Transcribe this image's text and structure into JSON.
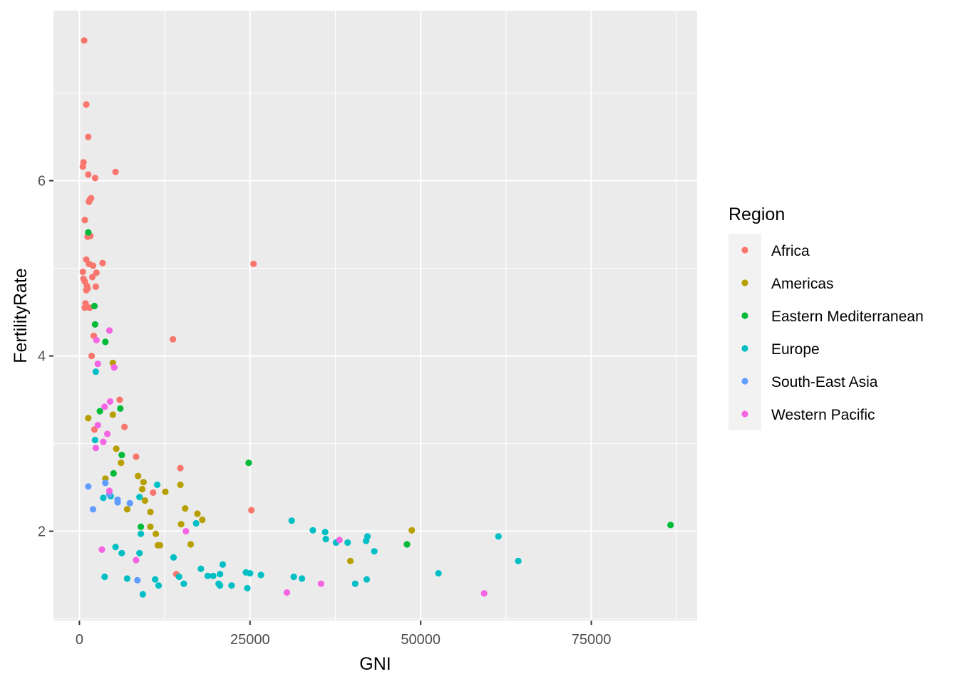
{
  "chart_data": {
    "type": "scatter",
    "xlabel": "GNI",
    "ylabel": "FertilityRate",
    "xlim": [
      -3800,
      90500
    ],
    "ylim": [
      0.98,
      7.94
    ],
    "x_ticks": [
      0,
      25000,
      50000,
      75000
    ],
    "x_tick_labels": [
      "0",
      "25000",
      "50000",
      "75000"
    ],
    "y_ticks": [
      2,
      4,
      6
    ],
    "y_tick_labels": [
      "2",
      "4",
      "6"
    ],
    "grid": true,
    "panel_background": "#ebebeb",
    "legend": {
      "title": "Region",
      "position": "right"
    },
    "series": [
      {
        "name": "Africa",
        "color": "#F8766D",
        "points": [
          [
            700,
            7.6
          ],
          [
            1000,
            6.87
          ],
          [
            1300,
            6.5
          ],
          [
            500,
            6.16
          ],
          [
            600,
            6.21
          ],
          [
            1300,
            6.07
          ],
          [
            2300,
            6.03
          ],
          [
            5300,
            6.1
          ],
          [
            1500,
            5.78
          ],
          [
            1700,
            5.8
          ],
          [
            1400,
            5.76
          ],
          [
            800,
            5.55
          ],
          [
            1200,
            5.36
          ],
          [
            1600,
            5.37
          ],
          [
            1000,
            5.1
          ],
          [
            1400,
            5.05
          ],
          [
            2000,
            5.03
          ],
          [
            3400,
            5.06
          ],
          [
            25500,
            5.05
          ],
          [
            500,
            4.96
          ],
          [
            2500,
            4.95
          ],
          [
            1900,
            4.9
          ],
          [
            600,
            4.88
          ],
          [
            800,
            4.85
          ],
          [
            1100,
            4.8
          ],
          [
            2400,
            4.79
          ],
          [
            1000,
            4.75
          ],
          [
            1200,
            4.77
          ],
          [
            900,
            4.6
          ],
          [
            800,
            4.55
          ],
          [
            1500,
            4.55
          ],
          [
            2100,
            4.23
          ],
          [
            13700,
            4.19
          ],
          [
            1800,
            4.0
          ],
          [
            5900,
            3.5
          ],
          [
            6600,
            3.19
          ],
          [
            2200,
            3.16
          ],
          [
            8300,
            2.85
          ],
          [
            14800,
            2.72
          ],
          [
            10800,
            2.44
          ],
          [
            25200,
            2.24
          ],
          [
            14200,
            1.51
          ]
        ]
      },
      {
        "name": "Americas",
        "color": "#B79F00",
        "points": [
          [
            4900,
            3.92
          ],
          [
            1300,
            3.29
          ],
          [
            4900,
            3.33
          ],
          [
            3800,
            2.6
          ],
          [
            5400,
            2.94
          ],
          [
            6100,
            2.78
          ],
          [
            8600,
            2.63
          ],
          [
            9400,
            2.56
          ],
          [
            9200,
            2.48
          ],
          [
            12600,
            2.45
          ],
          [
            14800,
            2.53
          ],
          [
            7000,
            2.25
          ],
          [
            10400,
            2.22
          ],
          [
            15500,
            2.26
          ],
          [
            17300,
            2.2
          ],
          [
            18000,
            2.13
          ],
          [
            9600,
            2.35
          ],
          [
            10400,
            2.05
          ],
          [
            14900,
            2.08
          ],
          [
            11200,
            1.97
          ],
          [
            11500,
            1.84
          ],
          [
            11800,
            1.84
          ],
          [
            16300,
            1.85
          ],
          [
            48700,
            2.01
          ],
          [
            39700,
            1.66
          ]
        ]
      },
      {
        "name": "Eastern Mediterranean",
        "color": "#00BA38",
        "points": [
          [
            1300,
            5.41
          ],
          [
            2200,
            4.57
          ],
          [
            2300,
            4.36
          ],
          [
            3800,
            4.16
          ],
          [
            3000,
            3.37
          ],
          [
            6000,
            3.4
          ],
          [
            6200,
            2.87
          ],
          [
            5000,
            2.66
          ],
          [
            24800,
            2.78
          ],
          [
            9000,
            2.05
          ],
          [
            86600,
            2.07
          ],
          [
            48000,
            1.85
          ]
        ]
      },
      {
        "name": "Europe",
        "color": "#00BFC4",
        "points": [
          [
            2400,
            3.82
          ],
          [
            2300,
            3.04
          ],
          [
            3500,
            2.38
          ],
          [
            4600,
            2.4
          ],
          [
            8800,
            2.39
          ],
          [
            11400,
            2.53
          ],
          [
            17100,
            2.09
          ],
          [
            9000,
            1.97
          ],
          [
            5300,
            1.82
          ],
          [
            6200,
            1.75
          ],
          [
            8800,
            1.75
          ],
          [
            13800,
            1.7
          ],
          [
            3700,
            1.48
          ],
          [
            7000,
            1.46
          ],
          [
            11100,
            1.45
          ],
          [
            14600,
            1.48
          ],
          [
            17800,
            1.57
          ],
          [
            18800,
            1.49
          ],
          [
            19600,
            1.49
          ],
          [
            20600,
            1.51
          ],
          [
            21000,
            1.62
          ],
          [
            20400,
            1.4
          ],
          [
            20600,
            1.38
          ],
          [
            22300,
            1.38
          ],
          [
            24400,
            1.53
          ],
          [
            25000,
            1.52
          ],
          [
            26600,
            1.5
          ],
          [
            24600,
            1.35
          ],
          [
            9300,
            1.28
          ],
          [
            11600,
            1.38
          ],
          [
            15300,
            1.4
          ],
          [
            31100,
            2.12
          ],
          [
            34200,
            2.01
          ],
          [
            36000,
            1.99
          ],
          [
            36100,
            1.91
          ],
          [
            37600,
            1.87
          ],
          [
            39300,
            1.87
          ],
          [
            42200,
            1.94
          ],
          [
            42000,
            1.89
          ],
          [
            43200,
            1.77
          ],
          [
            31400,
            1.48
          ],
          [
            32600,
            1.46
          ],
          [
            40400,
            1.4
          ],
          [
            42100,
            1.45
          ],
          [
            52600,
            1.52
          ],
          [
            61400,
            1.94
          ],
          [
            64300,
            1.66
          ]
        ]
      },
      {
        "name": "South-East Asia",
        "color": "#619CFF",
        "points": [
          [
            1300,
            2.51
          ],
          [
            3800,
            2.55
          ],
          [
            2000,
            2.25
          ],
          [
            4400,
            2.42
          ],
          [
            5600,
            2.36
          ],
          [
            5600,
            2.33
          ],
          [
            7400,
            2.32
          ],
          [
            8500,
            1.44
          ]
        ]
      },
      {
        "name": "Western Pacific",
        "color": "#F564E3",
        "points": [
          [
            4400,
            4.29
          ],
          [
            2500,
            4.18
          ],
          [
            2700,
            3.91
          ],
          [
            5100,
            3.87
          ],
          [
            4500,
            3.48
          ],
          [
            3700,
            3.42
          ],
          [
            2700,
            3.21
          ],
          [
            4100,
            3.11
          ],
          [
            3500,
            3.02
          ],
          [
            2400,
            2.95
          ],
          [
            4400,
            2.46
          ],
          [
            15600,
            2.0
          ],
          [
            8300,
            1.67
          ],
          [
            3300,
            1.79
          ],
          [
            38100,
            1.9
          ],
          [
            30400,
            1.3
          ],
          [
            35400,
            1.4
          ],
          [
            59300,
            1.29
          ]
        ]
      }
    ]
  }
}
